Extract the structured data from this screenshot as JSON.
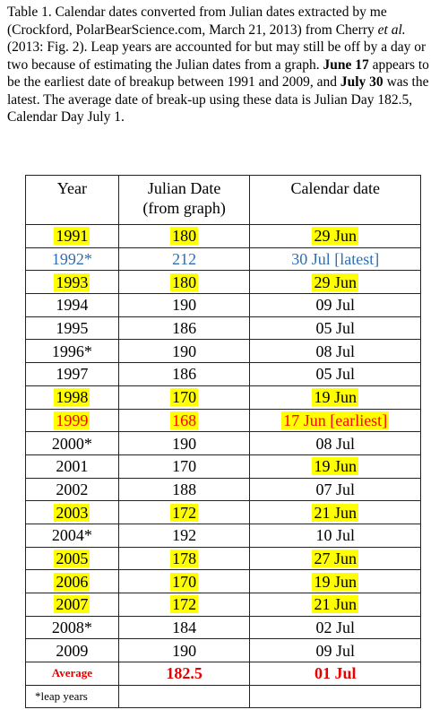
{
  "caption": {
    "prefix": "Table 1. Calendar dates converted from Julian dates extracted by me (Crockford, PolarBearScience.com, March 21, 2013) from Cherry ",
    "etal": "et al.",
    "mid1": " (2013: Fig. 2). Leap years are accounted for but may still be off by a day or two because of estimating the Julian dates from a graph. ",
    "bold1": "June 17",
    "mid2": " appears to be the earliest date of breakup between 1991 and 2009, and ",
    "bold2": "July 30",
    "suffix": " was the latest. The average date of break-up using these data is Julian Day 182.5, Calendar Day July 1."
  },
  "table": {
    "headers": [
      "Year",
      "Julian Date (from graph)",
      "Calendar date"
    ],
    "rows": [
      {
        "year": "1991",
        "julian": "180",
        "calendar": "29 Jun",
        "hl": true,
        "style": ""
      },
      {
        "year": "1992*",
        "julian": "212",
        "calendar": "30 Jul [latest]",
        "hl": false,
        "style": "blue"
      },
      {
        "year": "1993",
        "julian": "180",
        "calendar": "29 Jun",
        "hl": true,
        "style": ""
      },
      {
        "year": "1994",
        "julian": "190",
        "calendar": "09 Jul",
        "hl": false,
        "style": ""
      },
      {
        "year": "1995",
        "julian": "186",
        "calendar": "05 Jul",
        "hl": false,
        "style": ""
      },
      {
        "year": "1996*",
        "julian": "190",
        "calendar": "08 Jul",
        "hl": false,
        "style": ""
      },
      {
        "year": "1997",
        "julian": "186",
        "calendar": "05 Jul",
        "hl": false,
        "style": ""
      },
      {
        "year": "1998",
        "julian": "170",
        "calendar": "19 Jun",
        "hl": true,
        "style": ""
      },
      {
        "year": "1999",
        "julian": "168",
        "calendar": "17 Jun [earliest]",
        "hl": true,
        "style": "red"
      },
      {
        "year": "2000*",
        "julian": "190",
        "calendar": "08 Jul",
        "hl": false,
        "style": ""
      },
      {
        "year": "2001",
        "julian": "170",
        "calendar": "19 Jun",
        "hl": false,
        "hlCal": true,
        "style": ""
      },
      {
        "year": "2002",
        "julian": "188",
        "calendar": "07 Jul",
        "hl": false,
        "style": ""
      },
      {
        "year": "2003",
        "julian": "172",
        "calendar": "21 Jun",
        "hl": true,
        "style": ""
      },
      {
        "year": "2004*",
        "julian": "192",
        "calendar": "10 Jul",
        "hl": false,
        "style": ""
      },
      {
        "year": "2005",
        "julian": "178",
        "calendar": "27 Jun",
        "hl": true,
        "style": ""
      },
      {
        "year": "2006",
        "julian": "170",
        "calendar": "19 Jun",
        "hl": true,
        "style": ""
      },
      {
        "year": "2007",
        "julian": "172",
        "calendar": "21 Jun",
        "hl": true,
        "style": ""
      },
      {
        "year": "2008*",
        "julian": "184",
        "calendar": "02 Jul",
        "hl": false,
        "style": ""
      },
      {
        "year": "2009",
        "julian": "190",
        "calendar": "09 Jul",
        "hl": false,
        "style": ""
      }
    ],
    "average": {
      "label": "Average",
      "julian": "182.5",
      "calendar": "01 Jul"
    },
    "footnote": "*leap years"
  },
  "colors": {
    "highlight": "#ffff00",
    "latest": "#2f6eb5",
    "earliest": "#ff0000"
  }
}
